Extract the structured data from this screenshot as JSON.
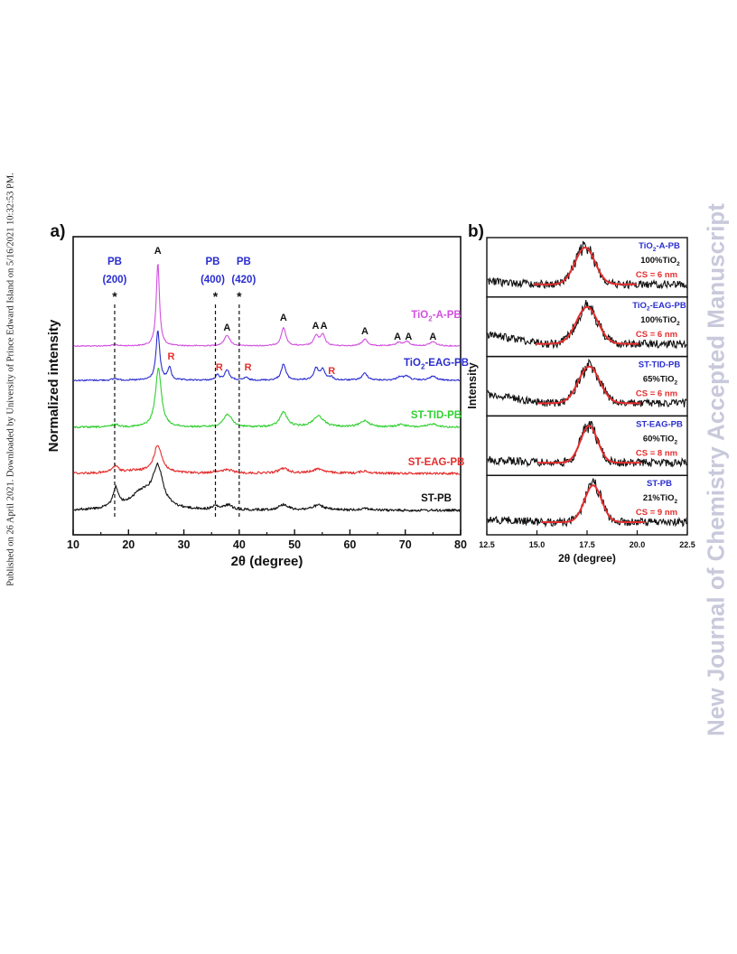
{
  "page": {
    "side_note": "Published on 26 April 2021. Downloaded by University of Prince Edward Island on 5/16/2021 10:32:53 PM.",
    "watermark": "New Journal of Chemistry Accepted Manuscript"
  },
  "chart_data": [
    {
      "type": "line",
      "panel_label": "a)",
      "xlabel": "2θ (degree)",
      "ylabel": "Normalized intensity",
      "xlim": [
        10,
        80
      ],
      "xticks": [
        "10",
        "20",
        "30",
        "40",
        "50",
        "60",
        "70",
        "80"
      ],
      "grid": false,
      "reference_lines": [
        {
          "x": 17.5,
          "label_top": "PB",
          "label_bottom": "(200)",
          "mark": "*"
        },
        {
          "x": 35.7,
          "label_top": "PB",
          "label_bottom": "(400)",
          "mark": "*"
        },
        {
          "x": 40.0,
          "label_top": "PB",
          "label_bottom": "(420)",
          "mark": "*"
        }
      ],
      "series": [
        {
          "name": "TiO2-A-PB",
          "name_main": "TiO",
          "name_sub": "2",
          "name_rest": "-A-PB",
          "color": "#d24fe0",
          "peaks": [
            [
              25.3,
              1.0,
              0.35
            ],
            [
              37.8,
              0.13,
              0.6
            ],
            [
              48.0,
              0.22,
              0.5
            ],
            [
              53.9,
              0.12,
              0.5
            ],
            [
              55.1,
              0.13,
              0.5
            ],
            [
              62.7,
              0.08,
              0.6
            ],
            [
              68.8,
              0.04,
              0.6
            ],
            [
              70.3,
              0.05,
              0.6
            ],
            [
              75.0,
              0.05,
              0.7
            ],
            [
              17.6,
              0.015,
              0.6
            ]
          ]
        },
        {
          "name": "TiO2-EAG-PB",
          "name_main": "TiO",
          "name_sub": "2",
          "name_rest": "-EAG-PB",
          "color": "#2a2ecf",
          "peaks": [
            [
              25.3,
              0.85,
              0.4
            ],
            [
              27.4,
              0.22,
              0.35
            ],
            [
              36.1,
              0.09,
              0.4
            ],
            [
              37.8,
              0.18,
              0.5
            ],
            [
              41.2,
              0.05,
              0.4
            ],
            [
              48.0,
              0.28,
              0.5
            ],
            [
              53.9,
              0.2,
              0.5
            ],
            [
              55.1,
              0.18,
              0.5
            ],
            [
              56.6,
              0.05,
              0.4
            ],
            [
              62.7,
              0.12,
              0.6
            ],
            [
              69.0,
              0.06,
              0.6
            ],
            [
              70.3,
              0.07,
              0.6
            ],
            [
              75.0,
              0.07,
              0.7
            ],
            [
              17.6,
              0.03,
              0.6
            ]
          ]
        },
        {
          "name": "ST-TID-PB",
          "name_main": "ST-TID-PB",
          "name_sub": "",
          "name_rest": "",
          "color": "#2fd02f",
          "peaks": [
            [
              25.4,
              0.9,
              0.65
            ],
            [
              37.9,
              0.2,
              0.9
            ],
            [
              48.0,
              0.23,
              0.8
            ],
            [
              54.3,
              0.17,
              1.2
            ],
            [
              62.7,
              0.1,
              1.0
            ],
            [
              69.3,
              0.04,
              1.0
            ],
            [
              75.0,
              0.05,
              1.0
            ],
            [
              17.6,
              0.04,
              0.8
            ]
          ]
        },
        {
          "name": "ST-EAG-PB",
          "name_main": "ST-EAG-PB",
          "name_sub": "",
          "name_rest": "",
          "color": "#e52d2d",
          "peaks": [
            [
              25.3,
              0.5,
              0.9
            ],
            [
              17.6,
              0.12,
              0.7
            ],
            [
              21.0,
              0.04,
              2.5
            ],
            [
              37.9,
              0.06,
              1.2
            ],
            [
              48.0,
              0.09,
              1.0
            ],
            [
              54.3,
              0.08,
              1.3
            ],
            [
              62.7,
              0.04,
              1.0
            ],
            [
              35.7,
              0.03,
              0.6
            ]
          ]
        },
        {
          "name": "ST-PB",
          "name_main": "ST-PB",
          "name_sub": "",
          "name_rest": "",
          "color": "#111111",
          "peaks": [
            [
              25.3,
              0.55,
              1.1
            ],
            [
              17.7,
              0.28,
              0.6
            ],
            [
              22.5,
              0.25,
              2.6
            ],
            [
              35.7,
              0.05,
              0.6
            ],
            [
              38.0,
              0.07,
              0.9
            ],
            [
              48.0,
              0.08,
              1.0
            ],
            [
              54.3,
              0.07,
              1.3
            ],
            [
              62.7,
              0.03,
              1.0
            ]
          ]
        }
      ],
      "annotations": [
        {
          "text": "A",
          "x": 25.3,
          "row": 0,
          "color": "#111111"
        },
        {
          "text": "A",
          "x": 37.8,
          "row": 1,
          "color": "#111111"
        },
        {
          "text": "A",
          "x": 48.0,
          "row": 1,
          "color": "#111111"
        },
        {
          "text": "A",
          "x": 53.8,
          "row": 1,
          "color": "#111111"
        },
        {
          "text": "A",
          "x": 55.3,
          "row": 1,
          "color": "#111111"
        },
        {
          "text": "A",
          "x": 62.7,
          "row": 1,
          "color": "#111111"
        },
        {
          "text": "A",
          "x": 68.6,
          "row": 1,
          "color": "#111111"
        },
        {
          "text": "A",
          "x": 70.6,
          "row": 1,
          "color": "#111111"
        },
        {
          "text": "A",
          "x": 75.0,
          "row": 1,
          "color": "#111111"
        },
        {
          "text": "R",
          "x": 27.7,
          "row": 2,
          "color": "#e52d2d"
        },
        {
          "text": "R",
          "x": 36.4,
          "row": 2,
          "color": "#e52d2d"
        },
        {
          "text": "R",
          "x": 41.6,
          "row": 2,
          "color": "#e52d2d"
        },
        {
          "text": "R",
          "x": 56.7,
          "row": 2,
          "color": "#e52d2d"
        }
      ]
    },
    {
      "type": "line",
      "panel_label": "b)",
      "xlabel": "2θ (degree)",
      "ylabel": "Intensity",
      "xlim": [
        12.5,
        22.5
      ],
      "xticks": [
        "12.5",
        "15.0",
        "17.5",
        "20.0",
        "22.5"
      ],
      "fit_color": "#e52d2d",
      "panels": [
        {
          "name_main": "TiO",
          "name_sub": "2",
          "name_rest": "-A-PB",
          "content_main": "100%TiO",
          "content_sub": "2",
          "cs": "CS = 6 nm",
          "peak_center": 17.4,
          "peak_width": 0.7
        },
        {
          "name_main": "TiO",
          "name_sub": "2",
          "name_rest": "-EAG-PB",
          "content_main": "100%TiO",
          "content_sub": "2",
          "cs": "CS = 6 nm",
          "peak_center": 17.5,
          "peak_width": 0.75
        },
        {
          "name_main": "ST-TID-PB",
          "name_sub": "",
          "name_rest": "",
          "content_main": "65%TiO",
          "content_sub": "2",
          "cs": "CS = 6 nm",
          "peak_center": 17.6,
          "peak_width": 0.75
        },
        {
          "name_main": "ST-EAG-PB",
          "name_sub": "",
          "name_rest": "",
          "content_main": "60%TiO",
          "content_sub": "2",
          "cs": "CS = 8 nm",
          "peak_center": 17.6,
          "peak_width": 0.6
        },
        {
          "name_main": "ST-PB",
          "name_sub": "",
          "name_rest": "",
          "content_main": "21%TiO",
          "content_sub": "2",
          "cs": "CS = 9 nm",
          "peak_center": 17.8,
          "peak_width": 0.6
        }
      ]
    }
  ]
}
